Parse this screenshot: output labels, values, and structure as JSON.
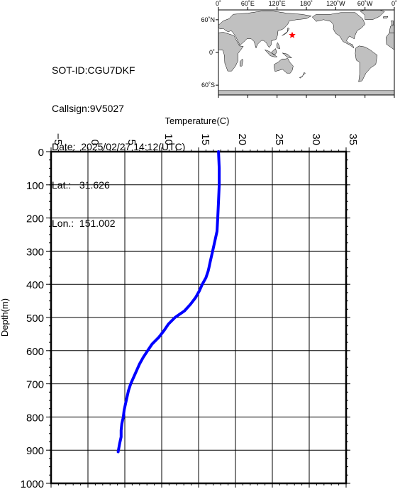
{
  "info": {
    "sot_id": "SOT-ID:CGU7DKF",
    "callsign": "Callsign:9V5027",
    "date_label": "Date:",
    "date_value": "2025/02/27 14:12(UTC)",
    "lat_label": "Lat.:",
    "lat_value": "31.626",
    "lon_label": "Lon.:",
    "lon_value": "151.002"
  },
  "map": {
    "lon_ticks": [
      "0˚",
      "60˚E",
      "120˚E",
      "180˚",
      "120˚W",
      "60˚W",
      "0˚"
    ],
    "lat_ticks": [
      "60˚N",
      "0˚",
      "60˚S"
    ],
    "marker": {
      "lat": 31.626,
      "lon": 151.002,
      "color": "#ff0000"
    },
    "land_color": "#c0c0c0",
    "ocean_color": "#ffffff"
  },
  "chart_data": {
    "type": "line",
    "title": "",
    "xlabel": "Temperature(C)",
    "ylabel": "Depth(m)",
    "xlim": [
      -5,
      35
    ],
    "ylim": [
      1000,
      0
    ],
    "x_ticks": [
      -5,
      0,
      5,
      10,
      15,
      20,
      25,
      30,
      35
    ],
    "y_ticks": [
      0,
      100,
      200,
      300,
      400,
      500,
      600,
      700,
      800,
      900,
      1000
    ],
    "grid": true,
    "series": [
      {
        "color": "#0000ff",
        "temperature": [
          17.7,
          17.8,
          17.8,
          17.7,
          17.6,
          17.5,
          17.2,
          16.9,
          16.6,
          16.4,
          16.3,
          16.0,
          15.5,
          15.1,
          14.6,
          13.9,
          13.1,
          11.8,
          10.9,
          10.3,
          9.6,
          8.7,
          8.1,
          7.5,
          7.0,
          6.6,
          6.2,
          5.8,
          5.5,
          5.3,
          5.1,
          4.9,
          4.8,
          4.6,
          4.5,
          4.5,
          4.3,
          4.1
        ],
        "depth": [
          0,
          50,
          100,
          150,
          200,
          240,
          270,
          300,
          330,
          350,
          360,
          380,
          400,
          420,
          440,
          460,
          480,
          500,
          520,
          540,
          560,
          580,
          600,
          620,
          640,
          660,
          680,
          700,
          720,
          740,
          760,
          780,
          800,
          820,
          840,
          860,
          880,
          905
        ]
      }
    ]
  }
}
